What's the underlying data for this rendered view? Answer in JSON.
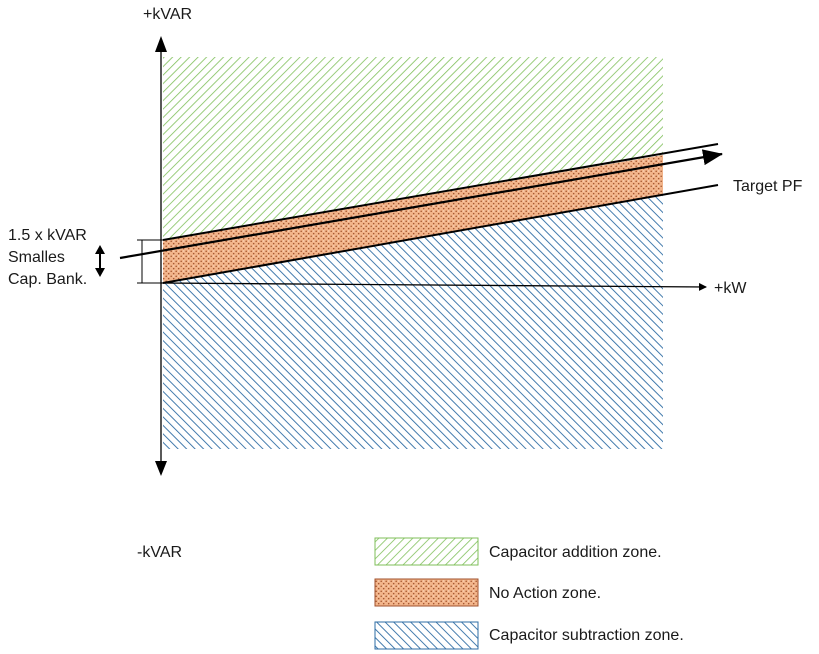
{
  "axes": {
    "y_positive_label": "+kVAR",
    "y_negative_label": "-kVAR",
    "x_positive_label": "+kW"
  },
  "annotations": {
    "target_pf": "Target PF",
    "band_label_lines": [
      "1.5 x kVAR",
      "Smalles",
      "Cap. Bank."
    ]
  },
  "legend": [
    {
      "label": "Capacitor addition zone.",
      "pattern": "green-diagonal-hatch"
    },
    {
      "label": "No Action zone.",
      "pattern": "orange-dotted"
    },
    {
      "label": "Capacitor subtraction zone.",
      "pattern": "blue-diagonal-hatch"
    }
  ],
  "colors": {
    "addition_zone": "#7fbf5a",
    "no_action_fill": "#f2b48a",
    "no_action_dots": "#a0522d",
    "subtraction_zone": "#2e6ca4",
    "lines": "#000000"
  }
}
